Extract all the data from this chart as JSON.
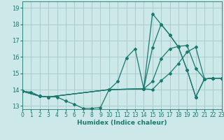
{
  "title": "",
  "xlabel": "Humidex (Indice chaleur)",
  "bg_color": "#cce8e8",
  "grid_color": "#aacccc",
  "line_color": "#1a7a6e",
  "xlim": [
    0,
    23
  ],
  "ylim": [
    12.8,
    19.4
  ],
  "xticks": [
    0,
    1,
    2,
    3,
    4,
    5,
    6,
    7,
    8,
    9,
    10,
    11,
    12,
    13,
    14,
    15,
    16,
    17,
    18,
    19,
    20,
    21,
    22,
    23
  ],
  "yticks": [
    13,
    14,
    15,
    16,
    17,
    18,
    19
  ],
  "lines": [
    {
      "x": [
        0,
        1,
        2,
        3,
        4,
        5,
        6,
        7,
        8,
        9,
        10,
        11,
        12,
        13,
        14,
        15,
        16,
        17,
        18,
        19,
        20,
        21,
        22,
        23
      ],
      "y": [
        13.9,
        13.85,
        13.6,
        13.55,
        13.55,
        13.3,
        13.1,
        12.85,
        12.85,
        12.9,
        14.0,
        14.5,
        15.95,
        16.5,
        14.05,
        18.65,
        18.0,
        17.35,
        16.6,
        15.2,
        13.55,
        14.65,
        14.7,
        14.7
      ]
    },
    {
      "x": [
        0,
        2,
        3,
        10,
        14,
        15,
        16,
        17,
        18,
        19,
        20,
        21,
        22,
        23
      ],
      "y": [
        13.9,
        13.6,
        13.55,
        14.0,
        14.05,
        16.55,
        18.0,
        17.35,
        16.6,
        15.2,
        13.55,
        14.65,
        14.7,
        14.7
      ]
    },
    {
      "x": [
        0,
        2,
        3,
        10,
        14,
        15,
        16,
        17,
        18,
        19,
        20,
        21,
        22,
        23
      ],
      "y": [
        13.9,
        13.6,
        13.55,
        14.0,
        14.05,
        14.5,
        15.9,
        16.5,
        16.65,
        16.7,
        15.3,
        14.65,
        14.7,
        14.7
      ]
    },
    {
      "x": [
        0,
        2,
        3,
        10,
        14,
        15,
        16,
        17,
        18,
        19,
        20,
        21,
        22,
        23
      ],
      "y": [
        13.9,
        13.6,
        13.55,
        14.0,
        14.05,
        14.0,
        14.55,
        15.0,
        15.6,
        16.3,
        16.6,
        14.65,
        14.7,
        14.7
      ]
    }
  ]
}
